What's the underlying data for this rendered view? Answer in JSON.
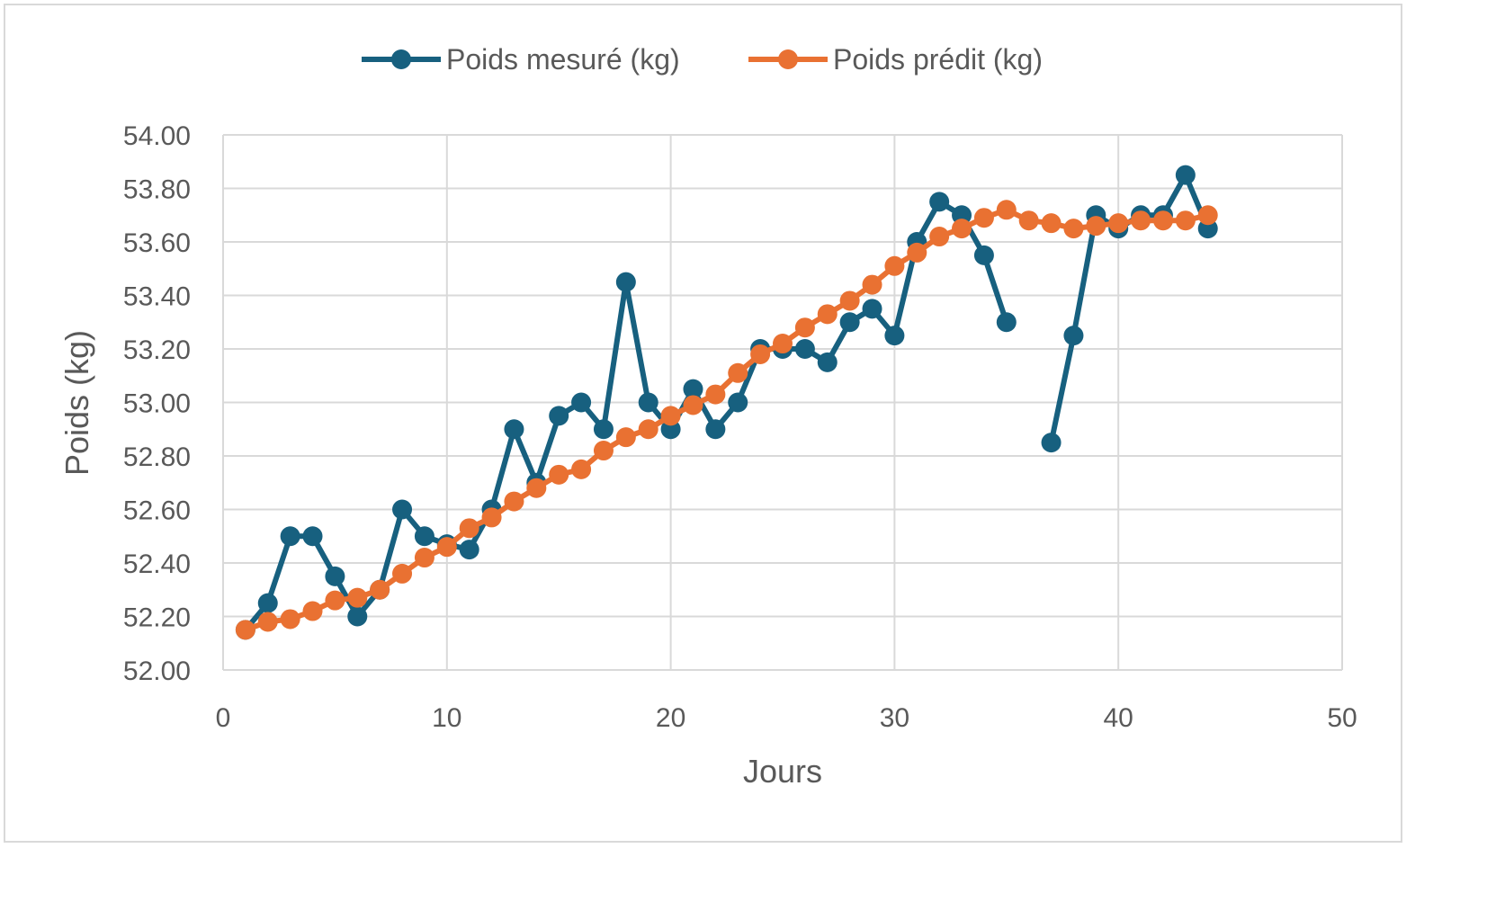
{
  "chart_data": {
    "type": "line",
    "title": "",
    "xlabel": "Jours",
    "ylabel": "Poids (kg)",
    "xlim": [
      0,
      50
    ],
    "ylim": [
      52.0,
      54.0
    ],
    "x_ticks": [
      0,
      10,
      20,
      30,
      40,
      50
    ],
    "y_ticks": [
      "52.00",
      "52.20",
      "52.40",
      "52.60",
      "52.80",
      "53.00",
      "53.20",
      "53.40",
      "53.60",
      "53.80",
      "54.00"
    ],
    "grid": true,
    "legend_position": "top",
    "x": [
      1,
      2,
      3,
      4,
      5,
      6,
      7,
      8,
      9,
      10,
      11,
      12,
      13,
      14,
      15,
      16,
      17,
      18,
      19,
      20,
      21,
      22,
      23,
      24,
      25,
      26,
      27,
      28,
      29,
      30,
      31,
      32,
      33,
      34,
      35,
      36,
      37,
      38,
      39,
      40,
      41,
      42,
      43,
      44
    ],
    "series": [
      {
        "name": "Poids mesuré (kg)",
        "color": "#17607f",
        "values": [
          52.15,
          52.25,
          52.5,
          52.5,
          52.35,
          52.2,
          52.3,
          52.6,
          52.5,
          52.47,
          52.45,
          52.6,
          52.9,
          52.7,
          52.95,
          53.0,
          52.9,
          53.45,
          53.0,
          52.9,
          53.05,
          52.9,
          53.0,
          53.2,
          53.2,
          53.2,
          53.15,
          53.3,
          53.35,
          53.25,
          53.6,
          53.75,
          53.7,
          53.55,
          53.3,
          null,
          52.85,
          53.25,
          53.7,
          53.65,
          53.7,
          53.7,
          53.85,
          53.65
        ]
      },
      {
        "name": "Poids prédit (kg)",
        "color": "#e97132",
        "values": [
          52.15,
          52.18,
          52.19,
          52.22,
          52.26,
          52.27,
          52.3,
          52.36,
          52.42,
          52.46,
          52.53,
          52.57,
          52.63,
          52.68,
          52.73,
          52.75,
          52.82,
          52.87,
          52.9,
          52.95,
          52.99,
          53.03,
          53.11,
          53.18,
          53.22,
          53.28,
          53.33,
          53.38,
          53.44,
          53.51,
          53.56,
          53.62,
          53.65,
          53.69,
          53.72,
          53.68,
          53.67,
          53.65,
          53.66,
          53.67,
          53.68,
          53.68,
          53.68,
          53.7
        ]
      }
    ]
  }
}
